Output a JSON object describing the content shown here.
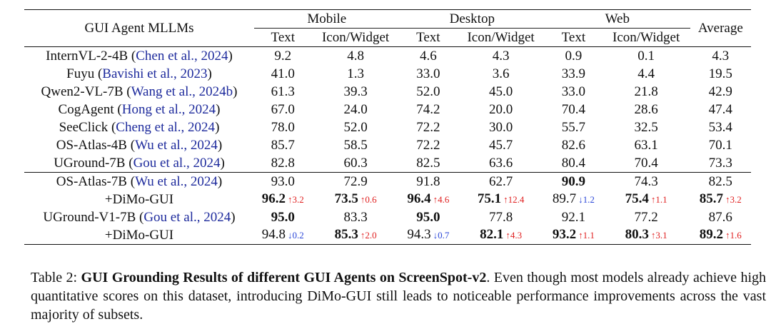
{
  "table": {
    "model_header": "GUI Agent MLLMs",
    "groups": [
      "Mobile",
      "Desktop",
      "Web"
    ],
    "average_header": "Average",
    "sub_headers": [
      "Text",
      "Icon/Widget",
      "Text",
      "Icon/Widget",
      "Text",
      "Icon/Widget"
    ],
    "rows": [
      {
        "name": "InternVL-2-4B",
        "cite": "Chen et al., 2024",
        "values": [
          "9.2",
          "4.8",
          "4.6",
          "4.3",
          "0.9",
          "0.1",
          "4.3"
        ]
      },
      {
        "name": "Fuyu",
        "cite": "Bavishi et al., 2023",
        "values": [
          "41.0",
          "1.3",
          "33.0",
          "3.6",
          "33.9",
          "4.4",
          "19.5"
        ]
      },
      {
        "name": "Qwen2-VL-7B",
        "cite": "Wang et al., 2024b",
        "values": [
          "61.3",
          "39.3",
          "52.0",
          "45.0",
          "33.0",
          "21.8",
          "42.9"
        ]
      },
      {
        "name": "CogAgent",
        "cite": "Hong et al., 2024",
        "values": [
          "67.0",
          "24.0",
          "74.2",
          "20.0",
          "70.4",
          "28.6",
          "47.4"
        ]
      },
      {
        "name": "SeeClick",
        "cite": "Cheng et al., 2024",
        "values": [
          "78.0",
          "52.0",
          "72.2",
          "30.0",
          "55.7",
          "32.5",
          "53.4"
        ]
      },
      {
        "name": "OS-Atlas-4B",
        "cite": "Wu et al., 2024",
        "values": [
          "85.7",
          "58.5",
          "72.2",
          "45.7",
          "82.6",
          "63.1",
          "70.1"
        ]
      },
      {
        "name": "UGround-7B",
        "cite": "Gou et al., 2024",
        "values": [
          "82.8",
          "60.3",
          "82.5",
          "63.6",
          "80.4",
          "70.4",
          "73.3"
        ]
      },
      {
        "name": "OS-Atlas-7B",
        "cite": "Wu et al., 2024",
        "values": [
          "93.0",
          "72.9",
          "91.8",
          "62.7",
          "90.9",
          "74.3",
          "82.5"
        ]
      },
      {
        "name": "+DiMo-GUI",
        "cite": "",
        "values": [
          "96.2",
          "73.5",
          "96.4",
          "75.1",
          "89.7",
          "75.4",
          "85.7"
        ],
        "deltas": [
          "↑3.2",
          "↑0.6",
          "↑4.6",
          "↑12.4",
          "↓1.2",
          "↑1.1",
          "↑3.2"
        ]
      },
      {
        "name": "UGround-V1-7B",
        "cite": "Gou et al., 2024",
        "values": [
          "95.0",
          "83.3",
          "95.0",
          "77.8",
          "92.1",
          "77.2",
          "87.6"
        ]
      },
      {
        "name": "+DiMo-GUI",
        "cite": "",
        "values": [
          "94.8",
          "85.3",
          "94.3",
          "82.1",
          "93.2",
          "80.3",
          "89.2"
        ],
        "deltas": [
          "↓0.2",
          "↑2.0",
          "↓0.7",
          "↑4.3",
          "↑1.1",
          "↑3.1",
          "↑1.6"
        ]
      }
    ]
  },
  "caption": {
    "label": "Table 2:",
    "title": "GUI Grounding Results of different GUI Agents on ScreenSpot-v2",
    "body": ". Even though most models already achieve high quantitative scores on this dataset, introducing DiMo-GUI still leads to noticeable performance improvements across the vast majority of subsets."
  }
}
